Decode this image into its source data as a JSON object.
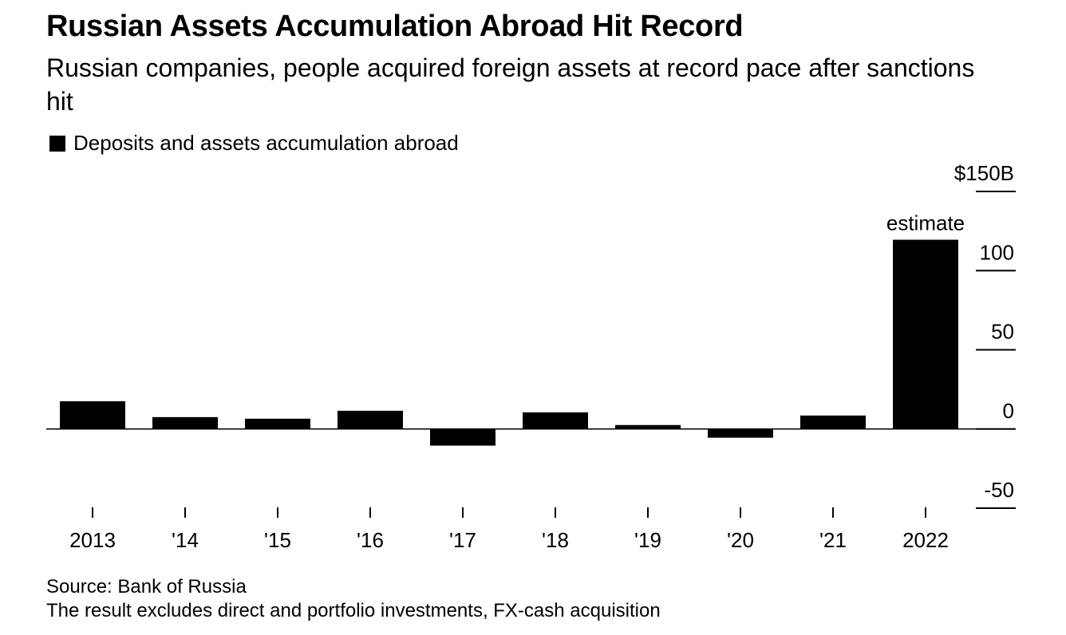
{
  "title": "Russian Assets Accumulation Abroad Hit Record",
  "subtitle": "Russian companies, people acquired foreign assets at record pace after sanctions hit",
  "legend_label": "Deposits and assets accumulation abroad",
  "footer": {
    "source": "Source: Bank of Russia",
    "note": "The result excludes direct and portfolio investments, FX-cash acquisition"
  },
  "colors": {
    "bar": "#000000",
    "axis": "#000000",
    "background": "#ffffff"
  },
  "chart_data": {
    "type": "bar",
    "categories": [
      "2013",
      "'14",
      "'15",
      "'16",
      "'17",
      "'18",
      "'19",
      "'20",
      "'21",
      "2022"
    ],
    "series": [
      {
        "name": "Deposits and assets accumulation abroad",
        "values": [
          17.5,
          7.5,
          6.5,
          11.5,
          -10.5,
          10.5,
          2.5,
          -5.5,
          8.5,
          119.5
        ]
      }
    ],
    "annotations": [
      {
        "category": "2022",
        "text": "estimate"
      }
    ],
    "y_ticks": [
      {
        "value": 150,
        "label": "$150B"
      },
      {
        "value": 100,
        "label": "100"
      },
      {
        "value": 50,
        "label": "50"
      },
      {
        "value": 0,
        "label": "0"
      },
      {
        "value": -50,
        "label": "-50"
      }
    ],
    "ylim": [
      -50,
      150
    ],
    "y_axis_side": "right",
    "grid": false,
    "legend_position": "top-left",
    "xlabel": "",
    "ylabel": ""
  }
}
